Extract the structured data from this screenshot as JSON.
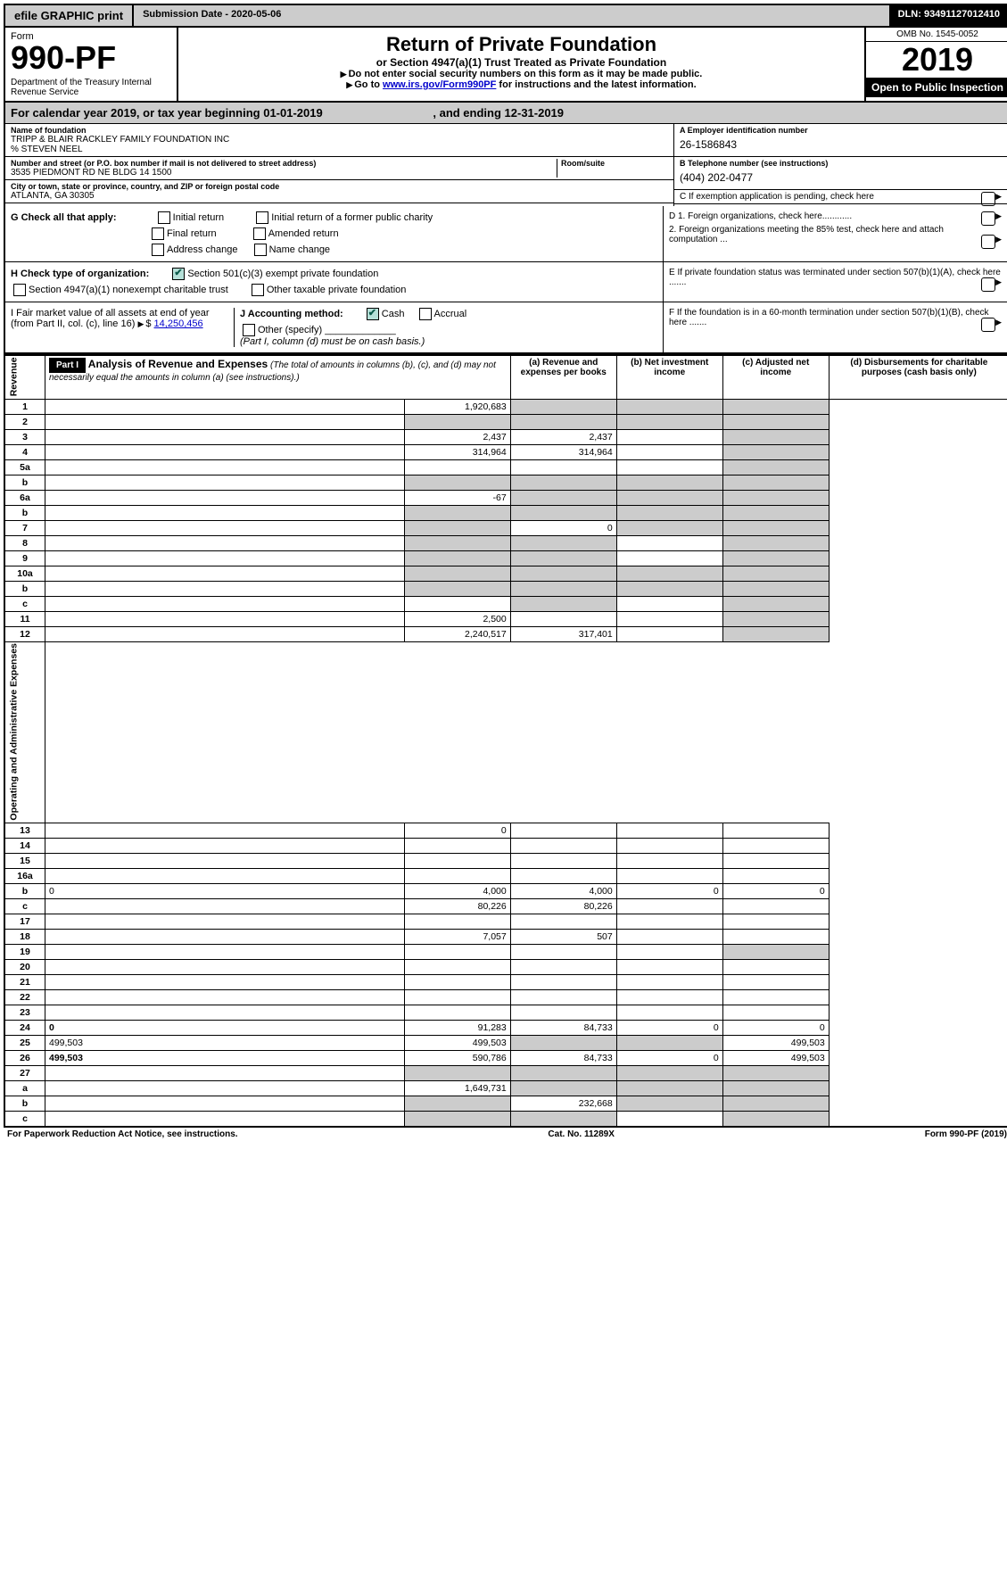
{
  "topbar": {
    "efile": "efile GRAPHIC print",
    "submission": "Submission Date - 2020-05-06",
    "dln": "DLN: 93491127012410"
  },
  "header": {
    "form_word": "Form",
    "form_num": "990-PF",
    "dept": "Department of the Treasury\nInternal Revenue Service",
    "title": "Return of Private Foundation",
    "subtitle": "or Section 4947(a)(1) Trust Treated as Private Foundation",
    "note1": "Do not enter social security numbers on this form as it may be made public.",
    "note2_a": "Go to ",
    "note2_link": "www.irs.gov/Form990PF",
    "note2_b": " for instructions and the latest information.",
    "omb": "OMB No. 1545-0052",
    "year": "2019",
    "inspect": "Open to Public Inspection"
  },
  "calrow": {
    "a": "For calendar year 2019, or tax year beginning 01-01-2019",
    "b": ", and ending 12-31-2019"
  },
  "info": {
    "name_label": "Name of foundation",
    "name": "TRIPP & BLAIR RACKLEY FAMILY FOUNDATION INC",
    "co": "% STEVEN NEEL",
    "addr_label": "Number and street (or P.O. box number if mail is not delivered to street address)",
    "room_label": "Room/suite",
    "addr": "3535 PIEDMONT RD NE BLDG 14 1500",
    "city_label": "City or town, state or province, country, and ZIP or foreign postal code",
    "city": "ATLANTA, GA  30305",
    "ein_label": "A Employer identification number",
    "ein": "26-1586843",
    "tel_label": "B Telephone number (see instructions)",
    "tel": "(404) 202-0477",
    "c_label": "C If exemption application is pending, check here"
  },
  "checks": {
    "g_label": "G Check all that apply:",
    "g1": "Initial return",
    "g2": "Initial return of a former public charity",
    "g3": "Final return",
    "g4": "Amended return",
    "g5": "Address change",
    "g6": "Name change",
    "h_label": "H Check type of organization:",
    "h1": "Section 501(c)(3) exempt private foundation",
    "h2": "Section 4947(a)(1) nonexempt charitable trust",
    "h3": "Other taxable private foundation",
    "i_label": "I Fair market value of all assets at end of year (from Part II, col. (c), line 16)",
    "i_val": "14,250,456",
    "j_label": "J Accounting method:",
    "j1": "Cash",
    "j2": "Accrual",
    "j3": "Other (specify)",
    "j_note": "(Part I, column (d) must be on cash basis.)",
    "d1": "D 1. Foreign organizations, check here............",
    "d2": "2. Foreign organizations meeting the 85% test, check here and attach computation ...",
    "e": "E  If private foundation status was terminated under section 507(b)(1)(A), check here .......",
    "f": "F  If the foundation is in a 60-month termination under section 507(b)(1)(B), check here ......."
  },
  "part1": {
    "title": "Part I",
    "heading": "Analysis of Revenue and Expenses",
    "heading_note": "(The total of amounts in columns (b), (c), and (d) may not necessarily equal the amounts in column (a) (see instructions).)",
    "col_a": "(a)  Revenue and expenses per books",
    "col_b": "(b)  Net investment income",
    "col_c": "(c)  Adjusted net income",
    "col_d": "(d)  Disbursements for charitable purposes (cash basis only)",
    "side_rev": "Revenue",
    "side_exp": "Operating and Administrative Expenses"
  },
  "rows": [
    {
      "n": "1",
      "d": "",
      "a": "1,920,683",
      "b": "",
      "c": "",
      "grey_b": true,
      "grey_c": true,
      "grey_d": true
    },
    {
      "n": "2",
      "d": "",
      "a": "",
      "b": "",
      "c": "",
      "grey_a": true,
      "grey_b": true,
      "grey_c": true,
      "grey_d": true
    },
    {
      "n": "3",
      "d": "",
      "a": "2,437",
      "b": "2,437",
      "c": "",
      "grey_d": true
    },
    {
      "n": "4",
      "d": "",
      "a": "314,964",
      "b": "314,964",
      "c": "",
      "grey_d": true
    },
    {
      "n": "5a",
      "d": "",
      "a": "",
      "b": "",
      "c": "",
      "grey_d": true
    },
    {
      "n": "b",
      "d": "",
      "a": "",
      "b": "",
      "c": "",
      "grey_a": true,
      "grey_b": true,
      "grey_c": true,
      "grey_d": true
    },
    {
      "n": "6a",
      "d": "",
      "a": "-67",
      "b": "",
      "c": "",
      "grey_b": true,
      "grey_c": true,
      "grey_d": true
    },
    {
      "n": "b",
      "d": "",
      "a": "",
      "b": "",
      "c": "",
      "grey_a": true,
      "grey_b": true,
      "grey_c": true,
      "grey_d": true
    },
    {
      "n": "7",
      "d": "",
      "a": "",
      "b": "0",
      "c": "",
      "grey_a": true,
      "grey_c": true,
      "grey_d": true
    },
    {
      "n": "8",
      "d": "",
      "a": "",
      "b": "",
      "c": "",
      "grey_a": true,
      "grey_b": true,
      "grey_d": true
    },
    {
      "n": "9",
      "d": "",
      "a": "",
      "b": "",
      "c": "",
      "grey_a": true,
      "grey_b": true,
      "grey_d": true
    },
    {
      "n": "10a",
      "d": "",
      "a": "",
      "b": "",
      "c": "",
      "grey_a": true,
      "grey_b": true,
      "grey_c": true,
      "grey_d": true
    },
    {
      "n": "b",
      "d": "",
      "a": "",
      "b": "",
      "c": "",
      "grey_a": true,
      "grey_b": true,
      "grey_c": true,
      "grey_d": true
    },
    {
      "n": "c",
      "d": "",
      "a": "",
      "b": "",
      "c": "",
      "grey_b": true,
      "grey_d": true
    },
    {
      "n": "11",
      "d": "",
      "a": "2,500",
      "b": "",
      "c": "",
      "grey_d": true
    },
    {
      "n": "12",
      "d": "",
      "a": "2,240,517",
      "b": "317,401",
      "c": "",
      "grey_d": true,
      "bold": true
    },
    {
      "n": "13",
      "d": "",
      "a": "0",
      "b": "",
      "c": ""
    },
    {
      "n": "14",
      "d": "",
      "a": "",
      "b": "",
      "c": ""
    },
    {
      "n": "15",
      "d": "",
      "a": "",
      "b": "",
      "c": ""
    },
    {
      "n": "16a",
      "d": "",
      "a": "",
      "b": "",
      "c": ""
    },
    {
      "n": "b",
      "d": "0",
      "a": "4,000",
      "b": "4,000",
      "c": "0"
    },
    {
      "n": "c",
      "d": "",
      "a": "80,226",
      "b": "80,226",
      "c": ""
    },
    {
      "n": "17",
      "d": "",
      "a": "",
      "b": "",
      "c": ""
    },
    {
      "n": "18",
      "d": "",
      "a": "7,057",
      "b": "507",
      "c": ""
    },
    {
      "n": "19",
      "d": "",
      "a": "",
      "b": "",
      "c": "",
      "grey_d": true
    },
    {
      "n": "20",
      "d": "",
      "a": "",
      "b": "",
      "c": ""
    },
    {
      "n": "21",
      "d": "",
      "a": "",
      "b": "",
      "c": ""
    },
    {
      "n": "22",
      "d": "",
      "a": "",
      "b": "",
      "c": ""
    },
    {
      "n": "23",
      "d": "",
      "a": "",
      "b": "",
      "c": ""
    },
    {
      "n": "24",
      "d": "0",
      "a": "91,283",
      "b": "84,733",
      "c": "0",
      "bold": true
    },
    {
      "n": "25",
      "d": "499,503",
      "a": "499,503",
      "b": "",
      "c": "",
      "grey_b": true,
      "grey_c": true
    },
    {
      "n": "26",
      "d": "499,503",
      "a": "590,786",
      "b": "84,733",
      "c": "0",
      "bold": true
    },
    {
      "n": "27",
      "d": "",
      "a": "",
      "b": "",
      "c": "",
      "grey_a": true,
      "grey_b": true,
      "grey_c": true,
      "grey_d": true
    },
    {
      "n": "a",
      "d": "",
      "a": "1,649,731",
      "b": "",
      "c": "",
      "grey_b": true,
      "grey_c": true,
      "grey_d": true,
      "bold": true
    },
    {
      "n": "b",
      "d": "",
      "a": "",
      "b": "232,668",
      "c": "",
      "grey_a": true,
      "grey_c": true,
      "grey_d": true,
      "bold": true
    },
    {
      "n": "c",
      "d": "",
      "a": "",
      "b": "",
      "c": "",
      "grey_a": true,
      "grey_b": true,
      "grey_d": true,
      "bold": true
    }
  ],
  "footer": {
    "left": "For Paperwork Reduction Act Notice, see instructions.",
    "mid": "Cat. No. 11289X",
    "right": "Form 990-PF (2019)"
  }
}
